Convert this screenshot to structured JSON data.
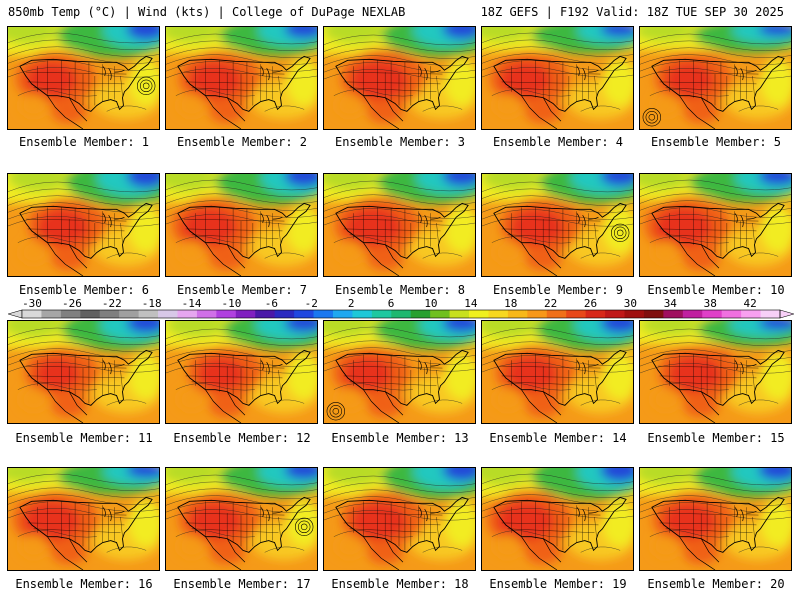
{
  "header": {
    "left": "850mb Temp (°C) | Wind (kts) | College of DuPage NEXLAB",
    "right": "18Z GEFS | F192 Valid: 18Z TUE SEP 30 2025"
  },
  "members": [
    {
      "label": "Ensemble Member: 1",
      "heat": 1.0,
      "cool": 0.9,
      "variant": 0
    },
    {
      "label": "Ensemble Member: 2",
      "heat": 1.1,
      "cool": 0.7,
      "variant": 1
    },
    {
      "label": "Ensemble Member: 3",
      "heat": 1.3,
      "cool": 0.8,
      "variant": 2
    },
    {
      "label": "Ensemble Member: 4",
      "heat": 1.0,
      "cool": 0.5,
      "variant": 0
    },
    {
      "label": "Ensemble Member: 5",
      "heat": 0.9,
      "cool": 0.4,
      "variant": 1
    },
    {
      "label": "Ensemble Member: 6",
      "heat": 1.0,
      "cool": 1.0,
      "variant": 2
    },
    {
      "label": "Ensemble Member: 7",
      "heat": 1.2,
      "cool": 0.9,
      "variant": 0
    },
    {
      "label": "Ensemble Member: 8",
      "heat": 1.3,
      "cool": 0.8,
      "variant": 1
    },
    {
      "label": "Ensemble Member: 9",
      "heat": 1.1,
      "cool": 0.8,
      "variant": 2
    },
    {
      "label": "Ensemble Member: 10",
      "heat": 1.3,
      "cool": 0.7,
      "variant": 0
    },
    {
      "label": "Ensemble Member: 11",
      "heat": 0.7,
      "cool": 0.8,
      "variant": 1
    },
    {
      "label": "Ensemble Member: 12",
      "heat": 0.8,
      "cool": 0.7,
      "variant": 2
    },
    {
      "label": "Ensemble Member: 13",
      "heat": 0.9,
      "cool": 0.7,
      "variant": 0
    },
    {
      "label": "Ensemble Member: 14",
      "heat": 1.0,
      "cool": 0.8,
      "variant": 1
    },
    {
      "label": "Ensemble Member: 15",
      "heat": 1.1,
      "cool": 0.4,
      "variant": 2
    },
    {
      "label": "Ensemble Member: 16",
      "heat": 1.3,
      "cool": 0.5,
      "variant": 0
    },
    {
      "label": "Ensemble Member: 17",
      "heat": 1.1,
      "cool": 0.7,
      "variant": 1
    },
    {
      "label": "Ensemble Member: 18",
      "heat": 1.2,
      "cool": 0.9,
      "variant": 2
    },
    {
      "label": "Ensemble Member: 19",
      "heat": 1.3,
      "cool": 1.0,
      "variant": 0
    },
    {
      "label": "Ensemble Member: 20",
      "heat": 1.1,
      "cool": 0.8,
      "variant": 1
    }
  ],
  "colorbar": {
    "ticks": [
      "-30",
      "-26",
      "-22",
      "-18",
      "-14",
      "-10",
      "-6",
      "-2",
      "2",
      "6",
      "10",
      "14",
      "18",
      "22",
      "26",
      "30",
      "34",
      "38",
      "42"
    ],
    "colors": [
      "#d9d9d9",
      "#a6a6a6",
      "#808080",
      "#606060",
      "#7f7f7f",
      "#a0a0a0",
      "#c0c0c0",
      "#d8c8e8",
      "#e6a6f0",
      "#d070e8",
      "#b040e0",
      "#8020c0",
      "#4a18a8",
      "#2a2ac0",
      "#2048e0",
      "#1a78f0",
      "#20a8f0",
      "#20c8d8",
      "#20c8a0",
      "#20b870",
      "#28a030",
      "#70c020",
      "#c8e020",
      "#f0f020",
      "#f8d820",
      "#f8b818",
      "#f89818",
      "#f07018",
      "#e84818",
      "#d82818",
      "#c01818",
      "#a01010",
      "#801010",
      "#a01060",
      "#c020a0",
      "#e040c8",
      "#f070e0",
      "#f8a0f0",
      "#f8d0f8"
    ],
    "labels": {
      "hot_core": "#e8301a",
      "hot_mid": "#f06018",
      "warm": "#f59a18",
      "mild": "#f8c820",
      "yellow": "#f2ec24",
      "green_yellow": "#b8dc28",
      "green": "#3cb840",
      "cyan": "#20c8c0",
      "sky": "#20a0e8",
      "blue": "#2048d8",
      "deep_blue": "#1a28a8"
    }
  }
}
